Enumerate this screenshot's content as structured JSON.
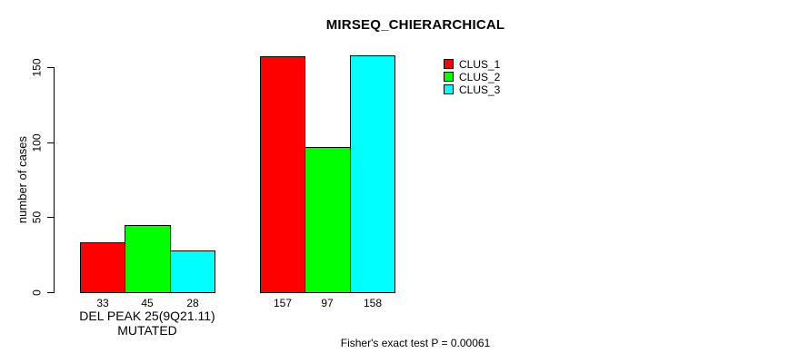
{
  "title": "MIRSEQ_CHIERARCHICAL",
  "footnote": "Fisher's exact test P = 0.00061",
  "axes": {
    "ylabel": "number of cases",
    "xlabel": "DEL PEAK 25(9Q21.11) MUTATED",
    "yticks": [
      0,
      50,
      100,
      150
    ]
  },
  "chart_data": {
    "type": "bar",
    "title": "MIRSEQ_CHIERARCHICAL",
    "xlabel": "DEL PEAK 25(9Q21.11) MUTATED",
    "ylabel": "number of cases",
    "groups": 2,
    "series": [
      {
        "name": "CLUS_1",
        "color": "#ff0000",
        "values": [
          33,
          157
        ]
      },
      {
        "name": "CLUS_2",
        "color": "#00ff00",
        "values": [
          45,
          97
        ]
      },
      {
        "name": "CLUS_3",
        "color": "#00ffff",
        "values": [
          28,
          158
        ]
      }
    ],
    "bar_labels": [
      [
        "33",
        "45",
        "28"
      ],
      [
        "157",
        "97",
        "158"
      ]
    ],
    "yticks": [
      0,
      50,
      100,
      150
    ],
    "ylim": [
      0,
      163
    ],
    "grid": false,
    "legend_position": "top-right",
    "annotation": "Fisher's exact test P = 0.00061"
  }
}
